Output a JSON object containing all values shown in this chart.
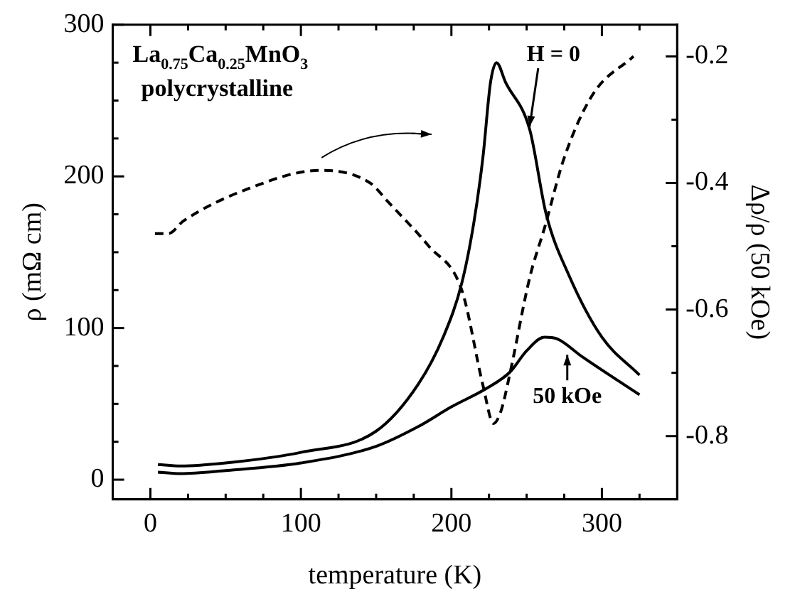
{
  "chart_data": {
    "type": "line",
    "xlabel": "temperature (K)",
    "ylabel": "ρ (mΩ cm)",
    "y2label": "Δρ/ρ (50 kOe)",
    "xlim": [
      -25,
      350
    ],
    "xticks": [
      0,
      {
        "value": 25,
        "label": null
      },
      {
        "value": 50,
        "label": null
      },
      {
        "value": 75,
        "label": null
      },
      100,
      {
        "value": 125,
        "label": null
      },
      {
        "value": 150,
        "label": null
      },
      {
        "value": 175,
        "label": null
      },
      200,
      {
        "value": 225,
        "label": null
      },
      {
        "value": 250,
        "label": null
      },
      {
        "value": 275,
        "label": null
      },
      300,
      {
        "value": 325,
        "label": null
      }
    ],
    "ylim": [
      -13,
      300
    ],
    "yticks": [
      0,
      {
        "value": 25,
        "label": null
      },
      {
        "value": 50,
        "label": null
      },
      {
        "value": 75,
        "label": null
      },
      100,
      {
        "value": 125,
        "label": null
      },
      {
        "value": 150,
        "label": null
      },
      {
        "value": 175,
        "label": null
      },
      200,
      {
        "value": 225,
        "label": null
      },
      {
        "value": 250,
        "label": null
      },
      {
        "value": 275,
        "label": null
      },
      300
    ],
    "y2lim": [
      -0.9,
      -0.15
    ],
    "y2ticks": [
      -0.2,
      {
        "value": -0.3,
        "label": null
      },
      -0.4,
      {
        "value": -0.5,
        "label": null
      },
      -0.6,
      {
        "value": -0.7,
        "label": null
      },
      -0.8
    ],
    "grid": false,
    "legend": false,
    "marker": "none",
    "series": [
      {
        "color": "#000000",
        "line_style": "solid",
        "x": [
          5,
          20,
          50,
          100,
          150,
          178,
          195,
          207,
          215,
          221,
          226,
          230,
          236,
          252,
          263,
          278,
          300,
          325
        ],
        "values": [
          10,
          9,
          11,
          18,
          32,
          63,
          95,
          130,
          170,
          213,
          262,
          275,
          262,
          231,
          175,
          135,
          94,
          69
        ]
      },
      {
        "color": "#000000",
        "line_style": "solid",
        "x": [
          5,
          20,
          50,
          100,
          150,
          178,
          200,
          223,
          239,
          250,
          262,
          270,
          287,
          325
        ],
        "values": [
          5,
          4,
          6,
          11,
          22,
          35,
          48,
          60,
          71,
          85,
          94,
          93,
          81,
          56
        ]
      },
      {
        "color": "#000000",
        "line_style": "dashed",
        "axis": "y2",
        "x": [
          3,
          12,
          22,
          64,
          113,
          146,
          158,
          185,
          207,
          221,
          228,
          233,
          239,
          252,
          262,
          275,
          294,
          321
        ],
        "values": [
          -0.48,
          -0.48,
          -0.46,
          -0.41,
          -0.38,
          -0.4,
          -0.43,
          -0.5,
          -0.57,
          -0.72,
          -0.78,
          -0.76,
          -0.7,
          -0.55,
          -0.47,
          -0.36,
          -0.26,
          -0.2
        ]
      }
    ],
    "annotations": [
      "La$_{0.75}$Ca$_{0.25}$MnO$_{3}$",
      "polycrystalline",
      {
        "text": "H = 0",
        "x": 252,
        "y": 231
      },
      {
        "text": "50 kOe",
        "x": 277,
        "y": 88
      }
    ]
  }
}
